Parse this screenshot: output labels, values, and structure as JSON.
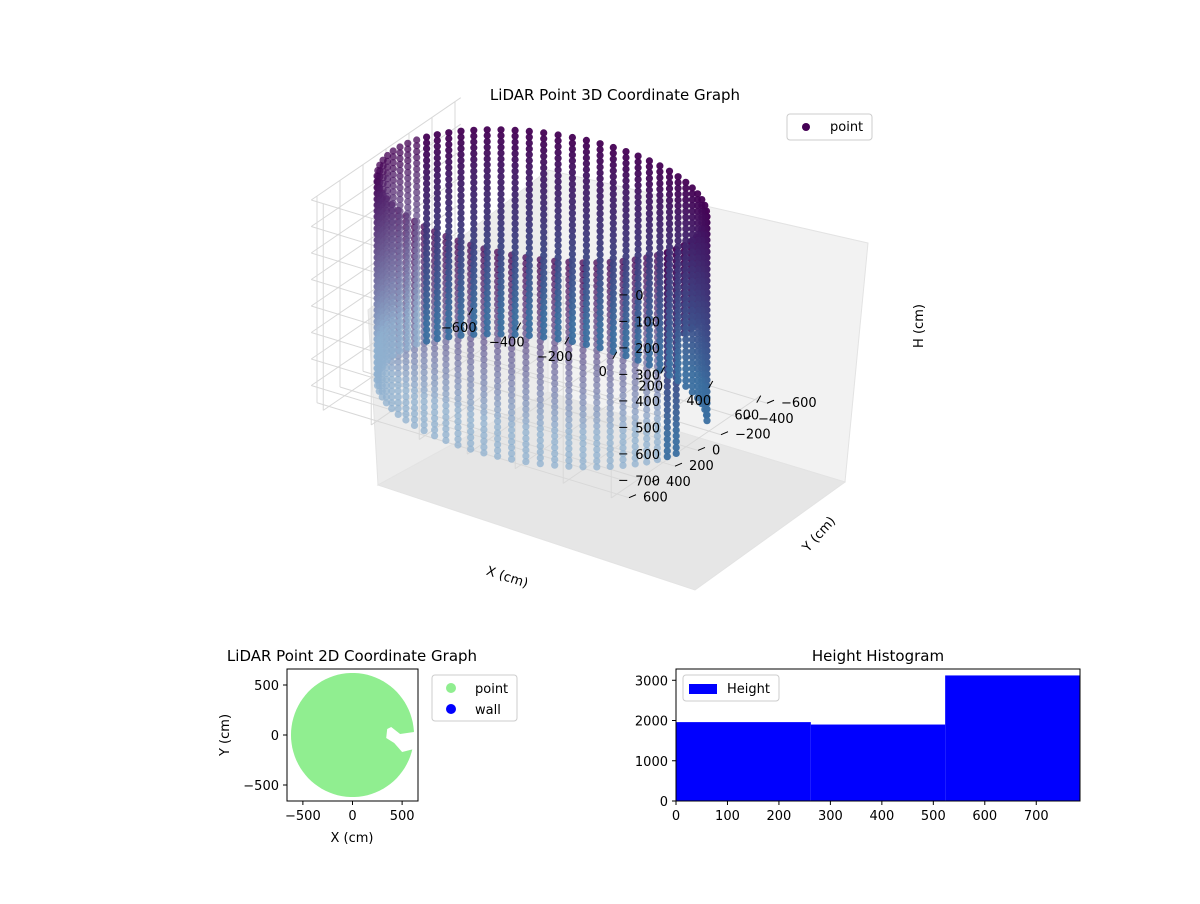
{
  "figure": {
    "chart_data": [
      {
        "type": "scatter",
        "subtype": "3d",
        "title": "LiDAR Point 3D Coordinate Graph",
        "xlabel": "X (cm)",
        "ylabel": "Y (cm)",
        "zlabel": "H (cm)",
        "x_ticks": [
          "−600",
          "−400",
          "−200",
          "0",
          "200",
          "400",
          "600"
        ],
        "y_ticks": [
          "−600",
          "−400",
          "−200",
          "0",
          "200",
          "400",
          "600"
        ],
        "z_ticks": [
          "0",
          "100",
          "200",
          "300",
          "400",
          "500",
          "600",
          "700"
        ],
        "xlim": [
          -650,
          650
        ],
        "ylim": [
          -650,
          650
        ],
        "zlim": [
          780,
          0
        ],
        "z_inverted": true,
        "series": [
          {
            "name": "point",
            "shape": "cylindrical wall of points",
            "radius": 620,
            "height_range": [
              0,
              780
            ],
            "opening": {
              "side": "+x",
              "y_range": [
                -250,
                100
              ]
            },
            "color_top": "#440154",
            "color_bottom": "#3b6fa0"
          }
        ],
        "legend": "top-right",
        "grid": true
      },
      {
        "type": "scatter",
        "title": "LiDAR Point 2D Coordinate Graph",
        "xlabel": "X (cm)",
        "ylabel": "Y (cm)",
        "x_ticks": [
          "−500",
          "0",
          "500"
        ],
        "y_ticks": [
          "500",
          "0",
          "−500"
        ],
        "xlim": [
          -660,
          660
        ],
        "ylim": [
          -660,
          660
        ],
        "series": [
          {
            "name": "point",
            "color": "#90ee90",
            "radius": 620
          },
          {
            "name": "wall",
            "color": "#0000ff"
          }
        ],
        "legend": "outside-right"
      },
      {
        "type": "bar",
        "subtype": "histogram",
        "title": "Height Histogram",
        "x_ticks": [
          "0",
          "100",
          "200",
          "300",
          "400",
          "500",
          "600",
          "700"
        ],
        "y_ticks": [
          "0",
          "1000",
          "2000",
          "3000"
        ],
        "xlim": [
          0,
          785
        ],
        "ylim": [
          0,
          3280
        ],
        "bins": [
          {
            "start": 0,
            "end": 262,
            "count": 1960
          },
          {
            "start": 262,
            "end": 523,
            "count": 1900
          },
          {
            "start": 523,
            "end": 785,
            "count": 3120
          }
        ],
        "series": [
          {
            "name": "Height",
            "color": "#0000ff"
          }
        ],
        "legend": "top-left",
        "grid": false
      }
    ]
  }
}
